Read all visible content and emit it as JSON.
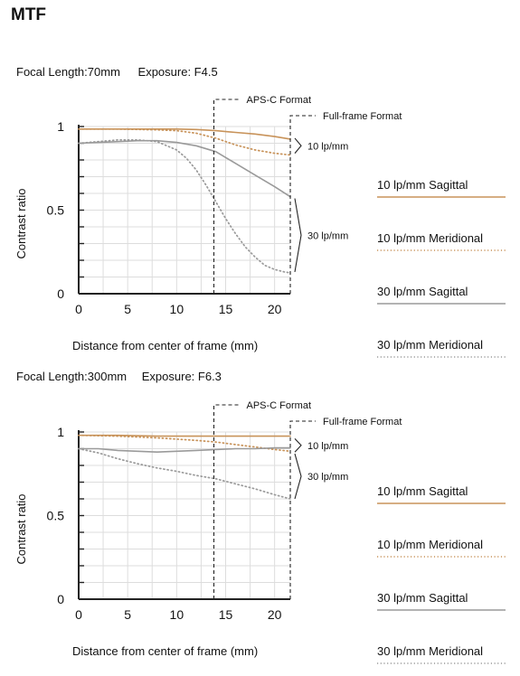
{
  "page": {
    "title": "MTF"
  },
  "legend": [
    {
      "label": "10 lp/mm Sagittal",
      "color": "#c8935a",
      "style": "solid"
    },
    {
      "label": "10 lp/mm Meridional",
      "color": "#c8935a",
      "style": "dotted"
    },
    {
      "label": "30 lp/mm Sagittal",
      "color": "#9a9a9a",
      "style": "solid"
    },
    {
      "label": "30 lp/mm Meridional",
      "color": "#9a9a9a",
      "style": "dotted"
    }
  ],
  "chart_data": [
    {
      "type": "line",
      "focal_label": "Focal Length:70mm",
      "exposure_label": "Exposure: F4.5",
      "xlabel": "Distance from center of frame (mm)",
      "ylabel": "Contrast ratio",
      "xlim": [
        0,
        21.6
      ],
      "ylim": [
        0,
        1
      ],
      "xticks": [
        "0",
        "5",
        "10",
        "15",
        "20"
      ],
      "xtick_values": [
        0,
        5,
        10,
        15,
        20
      ],
      "yticks": [
        "0",
        "0.5",
        "1"
      ],
      "ytick_values": [
        0,
        0.5,
        1
      ],
      "grid": true,
      "markers": [
        {
          "label": "APS-C Format",
          "x": 13.8
        },
        {
          "label": "Full-frame Format",
          "x": 21.6
        }
      ],
      "group_labels": [
        {
          "label": "10 lp/mm",
          "y_range": [
            0.84,
            0.93
          ]
        },
        {
          "label": "30 lp/mm",
          "y_range": [
            0.13,
            0.57
          ]
        }
      ],
      "series": [
        {
          "name": "10 lp/mm Sagittal",
          "x": [
            0,
            4,
            8,
            10,
            12,
            14,
            16,
            18,
            20,
            21.6
          ],
          "y": [
            0.985,
            0.985,
            0.985,
            0.985,
            0.982,
            0.975,
            0.965,
            0.955,
            0.94,
            0.925
          ]
        },
        {
          "name": "10 lp/mm Meridional",
          "x": [
            0,
            4,
            8,
            10,
            12,
            14,
            16,
            18,
            20,
            21.6
          ],
          "y": [
            0.985,
            0.985,
            0.98,
            0.975,
            0.96,
            0.93,
            0.89,
            0.86,
            0.84,
            0.83
          ]
        },
        {
          "name": "30 lp/mm Sagittal",
          "x": [
            0,
            2,
            4,
            6,
            8,
            10,
            12,
            14,
            16,
            18,
            20,
            21.6
          ],
          "y": [
            0.9,
            0.905,
            0.91,
            0.915,
            0.915,
            0.905,
            0.885,
            0.85,
            0.78,
            0.71,
            0.64,
            0.58
          ]
        },
        {
          "name": "30 lp/mm Meridional",
          "x": [
            0,
            2,
            4,
            6,
            8,
            10,
            11,
            12,
            13,
            14,
            15,
            16,
            17,
            18,
            19,
            20,
            21,
            21.6
          ],
          "y": [
            0.9,
            0.91,
            0.92,
            0.92,
            0.91,
            0.86,
            0.81,
            0.74,
            0.65,
            0.55,
            0.45,
            0.36,
            0.28,
            0.22,
            0.17,
            0.145,
            0.13,
            0.125
          ]
        }
      ]
    },
    {
      "type": "line",
      "focal_label": "Focal Length:300mm",
      "exposure_label": "Exposure: F6.3",
      "xlabel": "Distance from center of frame (mm)",
      "ylabel": "Contrast ratio",
      "xlim": [
        0,
        21.6
      ],
      "ylim": [
        0,
        1
      ],
      "xticks": [
        "0",
        "5",
        "10",
        "15",
        "20"
      ],
      "xtick_values": [
        0,
        5,
        10,
        15,
        20
      ],
      "yticks": [
        "0",
        "0.5",
        "1"
      ],
      "ytick_values": [
        0,
        0.5,
        1
      ],
      "grid": true,
      "markers": [
        {
          "label": "APS-C Format",
          "x": 13.8
        },
        {
          "label": "Full-frame Format",
          "x": 21.6
        }
      ],
      "group_labels": [
        {
          "label": "10 lp/mm",
          "y_range": [
            0.88,
            0.96
          ]
        },
        {
          "label": "30 lp/mm",
          "y_range": [
            0.6,
            0.87
          ]
        }
      ],
      "series": [
        {
          "name": "10 lp/mm Sagittal",
          "x": [
            0,
            4,
            8,
            12,
            16,
            20,
            21.6
          ],
          "y": [
            0.98,
            0.98,
            0.975,
            0.975,
            0.975,
            0.975,
            0.975
          ]
        },
        {
          "name": "10 lp/mm Meridional",
          "x": [
            0,
            4,
            8,
            12,
            14,
            16,
            18,
            20,
            21.6
          ],
          "y": [
            0.98,
            0.975,
            0.965,
            0.95,
            0.94,
            0.925,
            0.91,
            0.895,
            0.885
          ]
        },
        {
          "name": "30 lp/mm Sagittal",
          "x": [
            0,
            2,
            4,
            6,
            8,
            10,
            12,
            14,
            16,
            18,
            20,
            21.6
          ],
          "y": [
            0.9,
            0.9,
            0.89,
            0.885,
            0.88,
            0.885,
            0.89,
            0.895,
            0.9,
            0.9,
            0.905,
            0.905
          ]
        },
        {
          "name": "30 lp/mm Meridional",
          "x": [
            0,
            2,
            4,
            6,
            8,
            10,
            12,
            14,
            16,
            18,
            20,
            21.6
          ],
          "y": [
            0.9,
            0.875,
            0.84,
            0.81,
            0.785,
            0.765,
            0.74,
            0.72,
            0.69,
            0.66,
            0.625,
            0.6
          ]
        }
      ]
    }
  ]
}
